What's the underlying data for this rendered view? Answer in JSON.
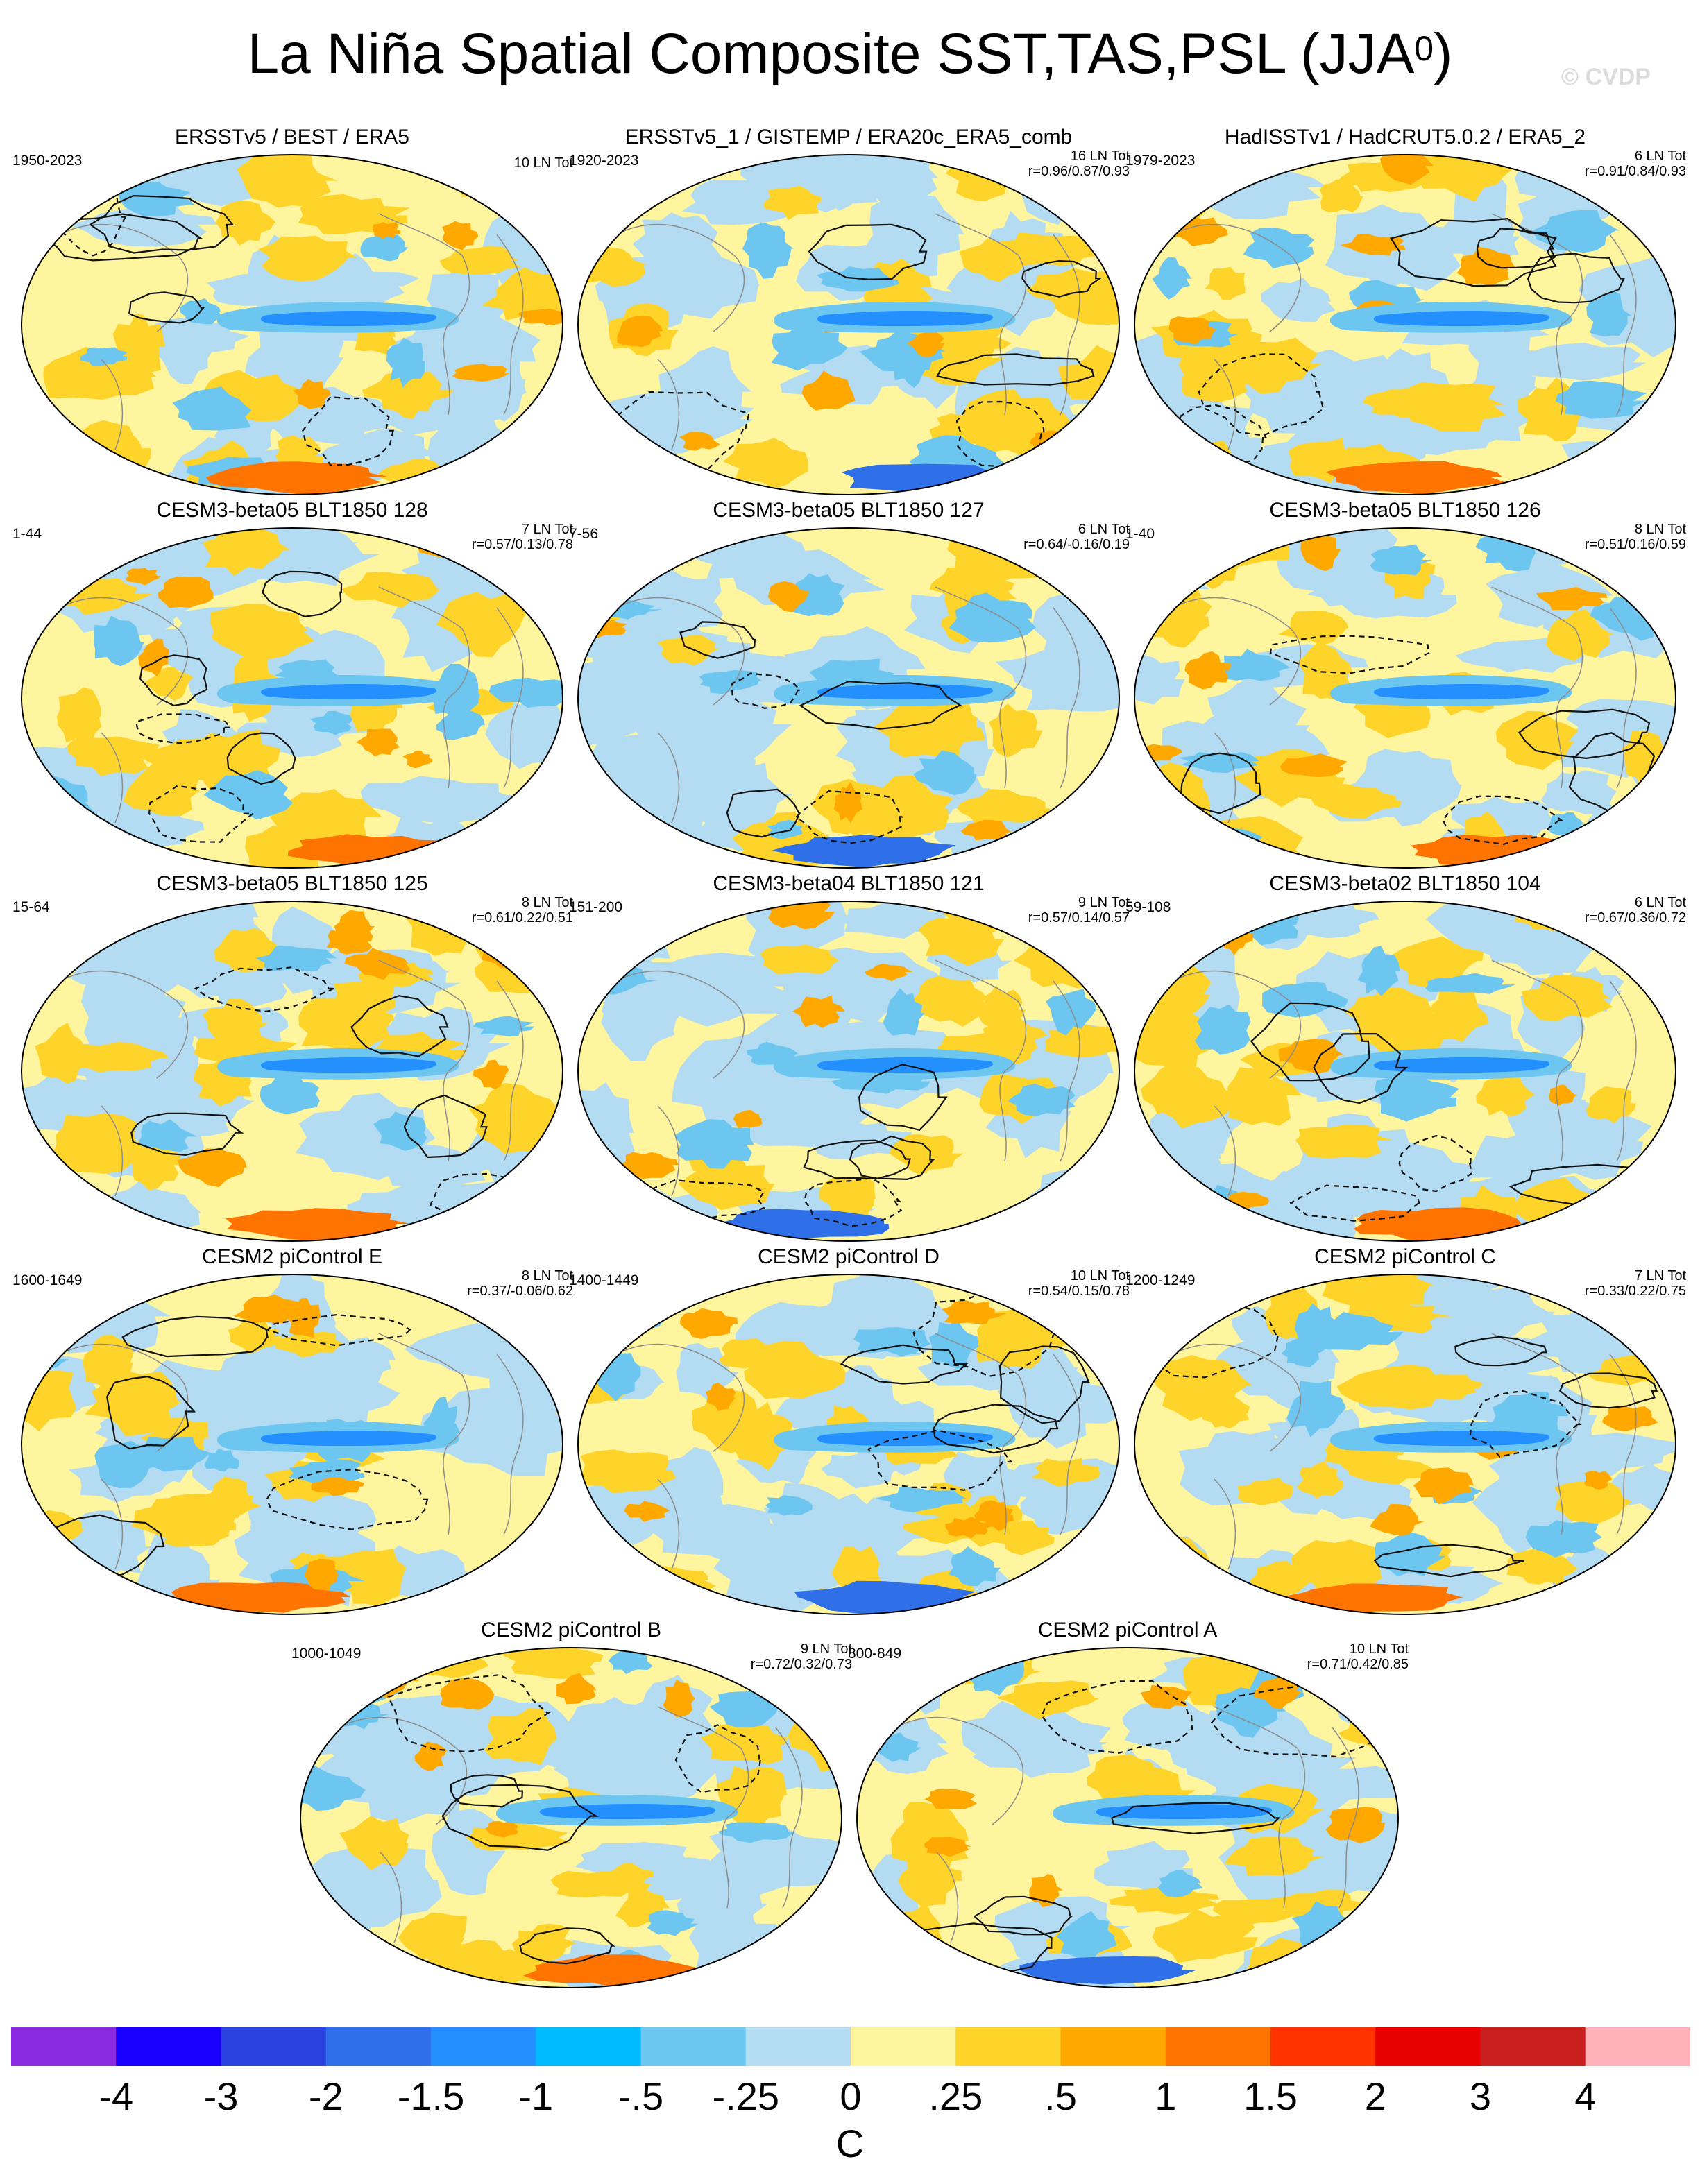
{
  "title": {
    "text": "La Niña Spatial Composite SST,TAS,PSL (JJA",
    "superscript": "0",
    "close": ")"
  },
  "watermark": "© CVDP",
  "panels": [
    {
      "title": "ERSSTv5 / BEST / ERA5",
      "years": "1950-2023",
      "count": "10 LN Tot",
      "corr": ""
    },
    {
      "title": "ERSSTv5_1 / GISTEMP / ERA20c_ERA5_comb",
      "years": "1920-2023",
      "count": "16 LN Tot",
      "corr": "r=0.96/0.87/0.93"
    },
    {
      "title": "HadISSTv1 / HadCRUT5.0.2 / ERA5_2",
      "years": "1979-2023",
      "count": "6 LN Tot",
      "corr": "r=0.91/0.84/0.93"
    },
    {
      "title": "CESM3-beta05 BLT1850 128",
      "years": "1-44",
      "count": "7 LN Tot",
      "corr": "r=0.57/0.13/0.78"
    },
    {
      "title": "CESM3-beta05 BLT1850 127",
      "years": "7-56",
      "count": "6 LN Tot",
      "corr": "r=0.64/-0.16/0.19"
    },
    {
      "title": "CESM3-beta05 BLT1850 126",
      "years": "1-40",
      "count": "8 LN Tot",
      "corr": "r=0.51/0.16/0.59"
    },
    {
      "title": "CESM3-beta05 BLT1850 125",
      "years": "15-64",
      "count": "8 LN Tot",
      "corr": "r=0.61/0.22/0.51"
    },
    {
      "title": "CESM3-beta04 BLT1850 121",
      "years": "151-200",
      "count": "9 LN Tot",
      "corr": "r=0.57/0.14/0.57"
    },
    {
      "title": "CESM3-beta02 BLT1850 104",
      "years": "59-108",
      "count": "6 LN Tot",
      "corr": "r=0.67/0.36/0.72"
    },
    {
      "title": "CESM2 piControl E",
      "years": "1600-1649",
      "count": "8 LN Tot",
      "corr": "r=0.37/-0.06/0.62"
    },
    {
      "title": "CESM2 piControl D",
      "years": "1400-1449",
      "count": "10 LN Tot",
      "corr": "r=0.54/0.15/0.78"
    },
    {
      "title": "CESM2 piControl C",
      "years": "1200-1249",
      "count": "7 LN Tot",
      "corr": "r=0.33/0.22/0.75"
    },
    {
      "title": "CESM2 piControl B",
      "years": "1000-1049",
      "count": "9 LN Tot",
      "corr": "r=0.72/0.32/0.73"
    },
    {
      "title": "CESM2 piControl A",
      "years": "800-849",
      "count": "10 LN Tot",
      "corr": "r=0.71/0.42/0.85"
    }
  ],
  "colorbar": {
    "colors": [
      "#8a2be2",
      "#1a00ff",
      "#2a42e0",
      "#2f6fe8",
      "#2490ff",
      "#00bbff",
      "#6cc6f0",
      "#b3dcf2",
      "#fff59e",
      "#ffd42a",
      "#ffa800",
      "#ff7300",
      "#ff3300",
      "#e60000",
      "#c81e1e",
      "#ffb0b8"
    ],
    "labels": [
      "-4",
      "-3",
      "-2",
      "-1.5",
      "-1",
      "-.5",
      "-.25",
      "0",
      ".25",
      ".5",
      "1",
      "1.5",
      "2",
      "3",
      "4"
    ],
    "units": "C"
  }
}
